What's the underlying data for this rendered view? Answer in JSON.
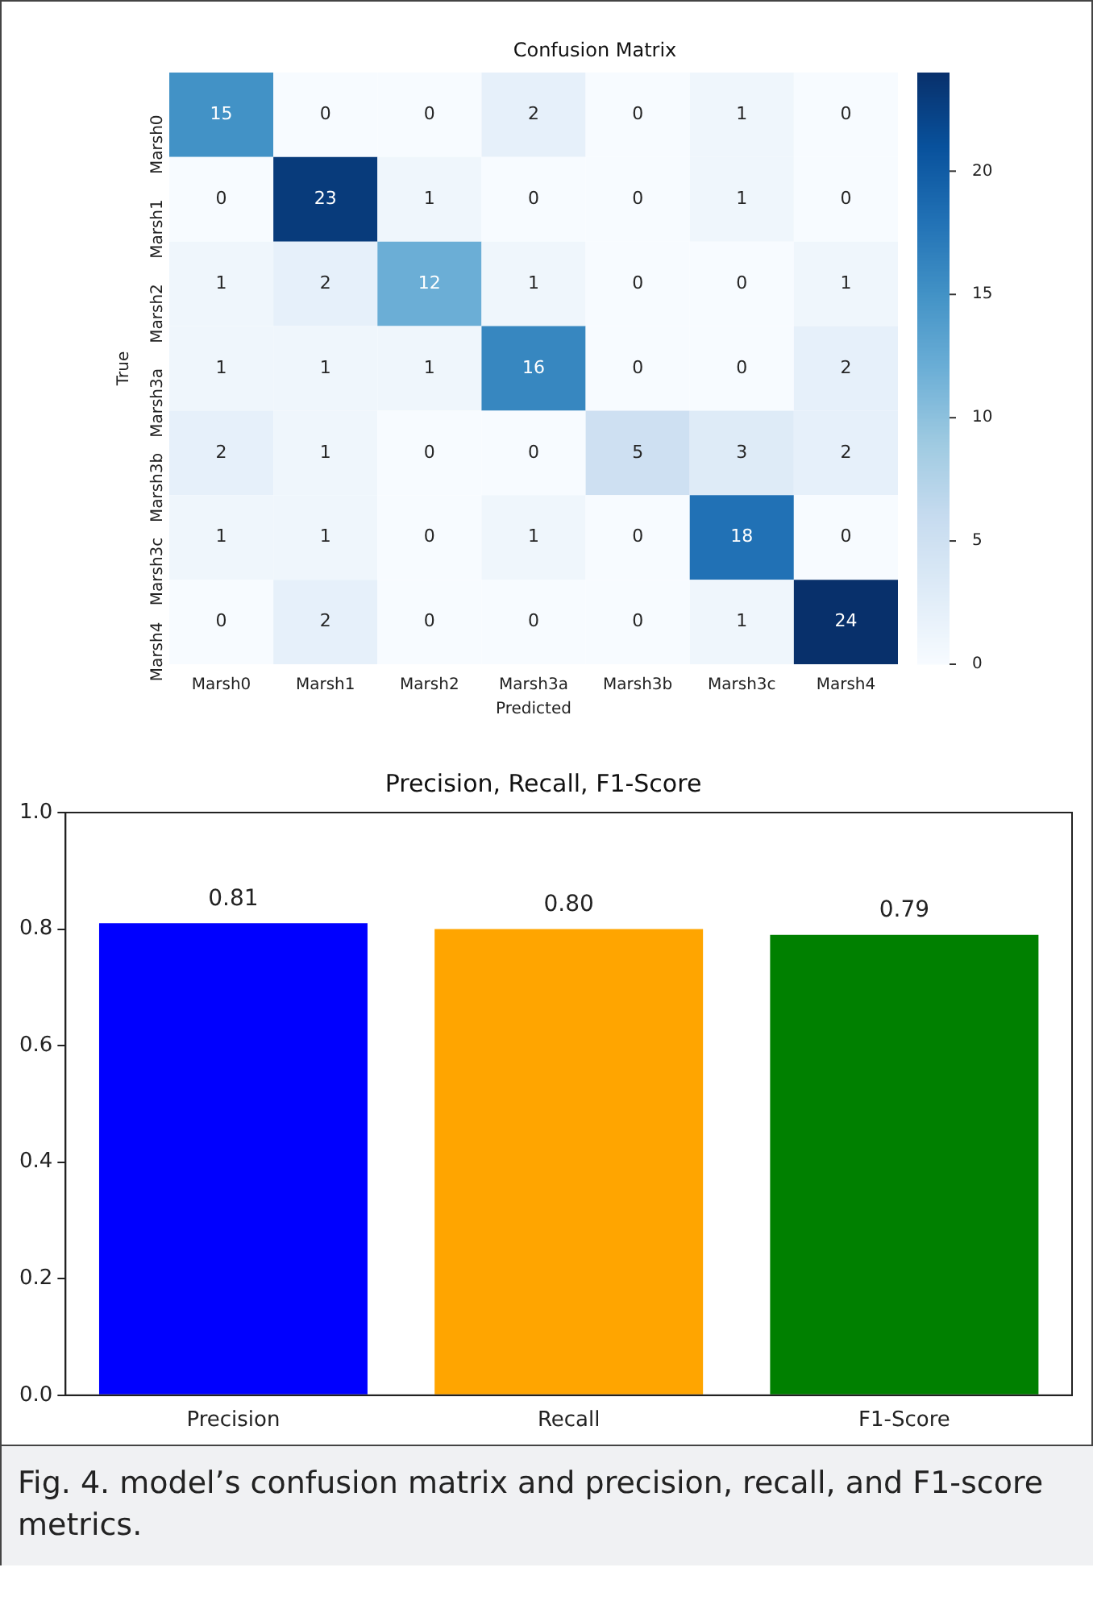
{
  "chart_data": [
    {
      "type": "heatmap",
      "title": "Confusion Matrix",
      "xlabel": "Predicted",
      "ylabel": "True",
      "categories": [
        "Marsh0",
        "Marsh1",
        "Marsh2",
        "Marsh3a",
        "Marsh3b",
        "Marsh3c",
        "Marsh4"
      ],
      "y_categories": [
        "Marsh0",
        "Marsh1",
        "Marsh2",
        "Marsh3a",
        "Marsh3b",
        "Marsh3c",
        "Marsh4"
      ],
      "cells": [
        [
          15,
          0,
          0,
          2,
          0,
          1,
          0
        ],
        [
          0,
          23,
          1,
          0,
          0,
          1,
          0
        ],
        [
          1,
          2,
          12,
          1,
          0,
          0,
          1
        ],
        [
          1,
          1,
          1,
          16,
          0,
          0,
          2
        ],
        [
          2,
          1,
          0,
          0,
          5,
          3,
          2
        ],
        [
          1,
          1,
          0,
          1,
          0,
          18,
          0
        ],
        [
          0,
          2,
          0,
          0,
          0,
          1,
          24
        ]
      ],
      "clim": [
        0,
        24
      ],
      "cticks": [
        0,
        5,
        10,
        15,
        20
      ],
      "data_labels": true
    },
    {
      "type": "bar",
      "title": "Precision, Recall, F1-Score",
      "categories": [
        "Precision",
        "Recall",
        "F1-Score"
      ],
      "values": [
        0.81,
        0.8,
        0.79
      ],
      "colors": [
        "#0000ff",
        "#ffa500",
        "#008000"
      ],
      "ylim": [
        0,
        1
      ],
      "yticks": [
        {
          "value": 0,
          "label": "0.0"
        },
        {
          "value": 0.2,
          "label": "0.2"
        },
        {
          "value": 0.4,
          "label": "0.4"
        },
        {
          "value": 0.6,
          "label": "0.6"
        },
        {
          "value": 0.8,
          "label": "0.8"
        },
        {
          "value": 1,
          "label": "1.0"
        }
      ],
      "value_labels": [
        "0.81",
        "0.80",
        "0.79"
      ],
      "annotations": [
        "Fig. 4. model’s confusion matrix and precision, recall, and F1-score metrics."
      ]
    }
  ]
}
